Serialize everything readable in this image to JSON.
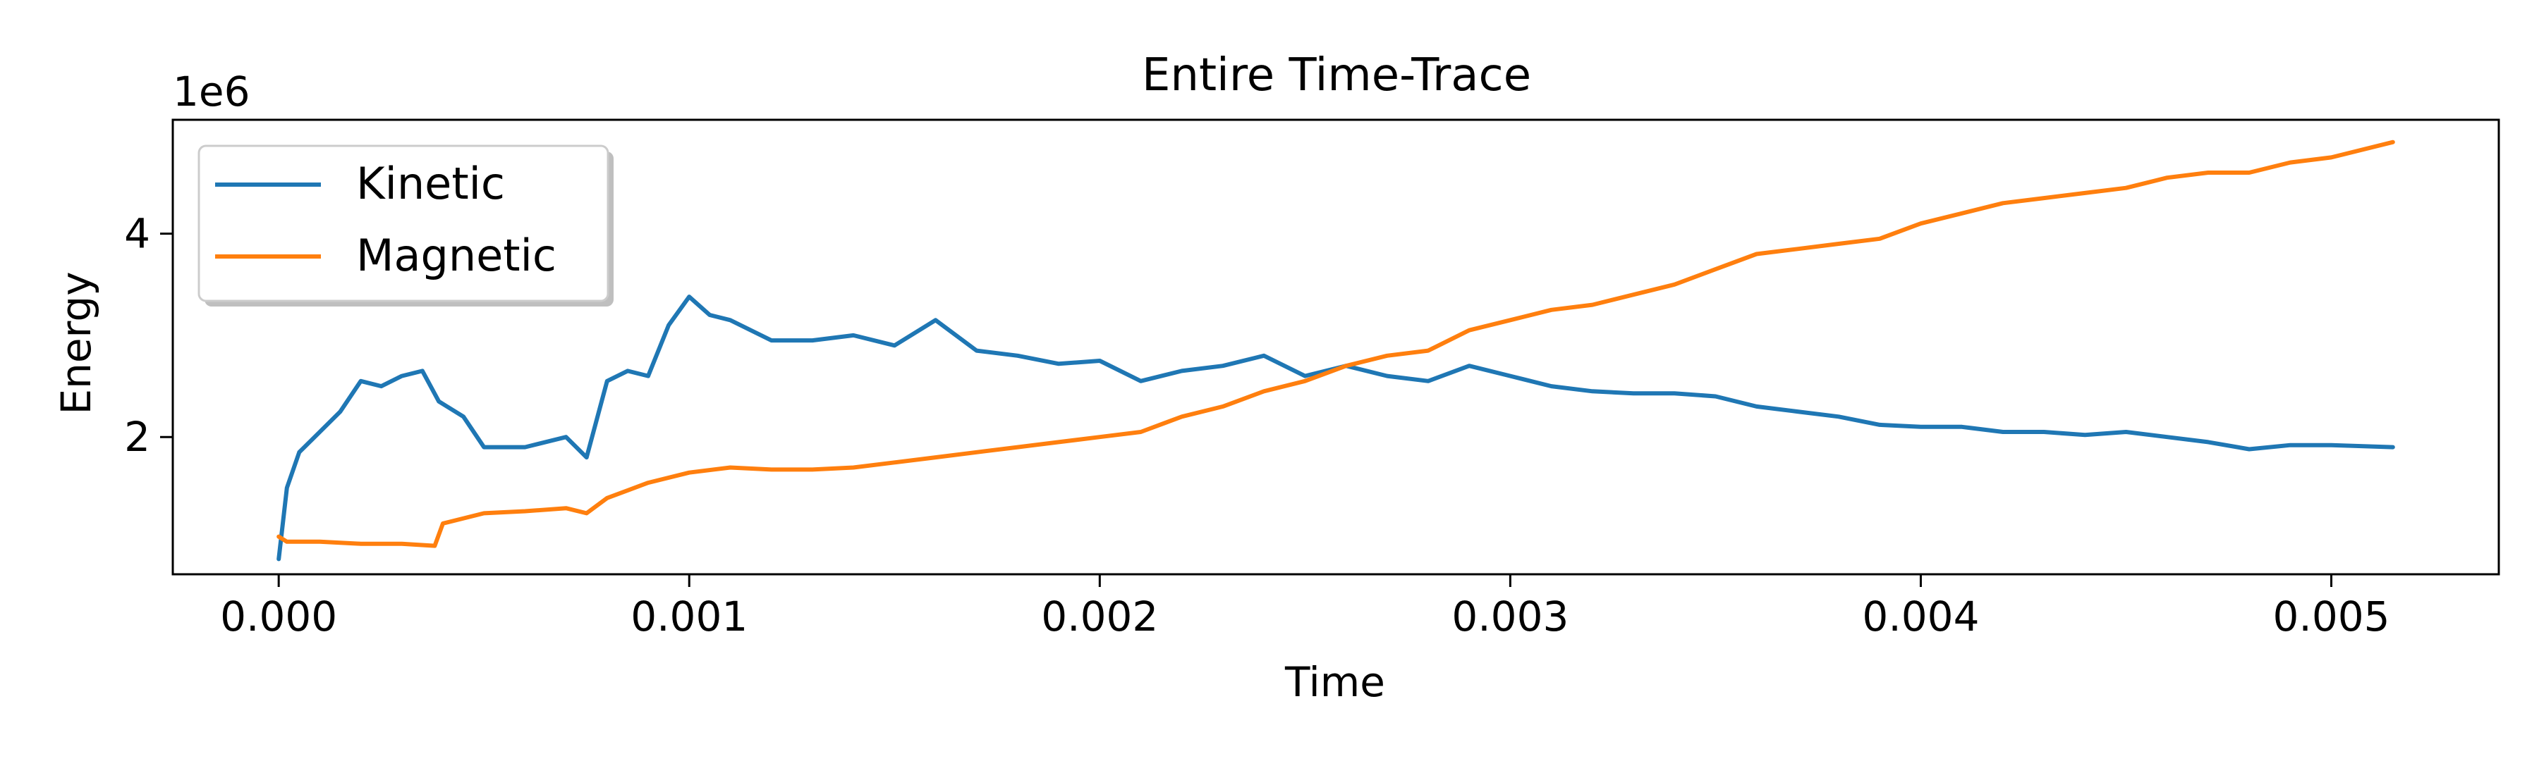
{
  "chart_data": {
    "type": "line",
    "title": "Entire Time-Trace",
    "xlabel": "Time",
    "ylabel": "Energy",
    "offset_text": "1e6",
    "xlim": [
      -0.000258,
      0.005408
    ],
    "ylim": [
      0.65,
      5.12
    ],
    "xticks": [
      0.0,
      0.001,
      0.002,
      0.003,
      0.004,
      0.005
    ],
    "xtick_labels": [
      "0.000",
      "0.001",
      "0.002",
      "0.003",
      "0.004",
      "0.005"
    ],
    "yticks": [
      2,
      4
    ],
    "ytick_labels": [
      "2",
      "4"
    ],
    "grid": false,
    "legend": "upper left",
    "series": [
      {
        "name": "Kinetic",
        "color": "#1f77b4",
        "x": [
          0.0,
          2e-05,
          5e-05,
          0.0001,
          0.00015,
          0.0002,
          0.00025,
          0.0003,
          0.00035,
          0.00039,
          0.00045,
          0.0005,
          0.0006,
          0.0007,
          0.00075,
          0.0008,
          0.00085,
          0.0009,
          0.00095,
          0.001,
          0.00105,
          0.0011,
          0.0012,
          0.0013,
          0.0014,
          0.0015,
          0.0016,
          0.0017,
          0.0018,
          0.0019,
          0.002,
          0.0021,
          0.0022,
          0.0023,
          0.0024,
          0.0025,
          0.0026,
          0.0027,
          0.0028,
          0.0029,
          0.003,
          0.0031,
          0.0032,
          0.0033,
          0.0034,
          0.0035,
          0.0036,
          0.0037,
          0.0038,
          0.0039,
          0.004,
          0.0041,
          0.0042,
          0.0043,
          0.0044,
          0.0045,
          0.0046,
          0.0047,
          0.0048,
          0.0049,
          0.005,
          0.00515
        ],
        "y": [
          0.8,
          1.5,
          1.85,
          2.05,
          2.25,
          2.55,
          2.5,
          2.6,
          2.65,
          2.35,
          2.2,
          1.9,
          1.9,
          2.0,
          1.8,
          2.55,
          2.65,
          2.6,
          3.1,
          3.38,
          3.2,
          3.15,
          2.95,
          2.95,
          3.0,
          2.9,
          3.15,
          2.85,
          2.8,
          2.72,
          2.75,
          2.55,
          2.65,
          2.7,
          2.8,
          2.6,
          2.7,
          2.6,
          2.55,
          2.7,
          2.6,
          2.5,
          2.45,
          2.43,
          2.43,
          2.4,
          2.3,
          2.25,
          2.2,
          2.12,
          2.1,
          2.1,
          2.05,
          2.05,
          2.02,
          2.05,
          2.0,
          1.95,
          1.88,
          1.92,
          1.92,
          1.9
        ]
      },
      {
        "name": "Magnetic",
        "color": "#ff7f0e",
        "x": [
          0.0,
          2e-05,
          0.0001,
          0.0002,
          0.0003,
          0.00038,
          0.0004,
          0.0005,
          0.0006,
          0.0007,
          0.00075,
          0.0008,
          0.0009,
          0.001,
          0.0011,
          0.0012,
          0.0013,
          0.0014,
          0.0015,
          0.0016,
          0.0017,
          0.0018,
          0.0019,
          0.002,
          0.0021,
          0.0022,
          0.0023,
          0.0024,
          0.0025,
          0.0026,
          0.0027,
          0.0028,
          0.0029,
          0.003,
          0.0031,
          0.0032,
          0.0033,
          0.0034,
          0.0035,
          0.0036,
          0.0037,
          0.0038,
          0.0039,
          0.004,
          0.0041,
          0.0042,
          0.0043,
          0.0044,
          0.0045,
          0.0046,
          0.0047,
          0.0048,
          0.0049,
          0.005,
          0.00515
        ],
        "y": [
          1.02,
          0.97,
          0.97,
          0.95,
          0.95,
          0.93,
          1.15,
          1.25,
          1.27,
          1.3,
          1.25,
          1.4,
          1.55,
          1.65,
          1.7,
          1.68,
          1.68,
          1.7,
          1.75,
          1.8,
          1.85,
          1.9,
          1.95,
          2.0,
          2.05,
          2.2,
          2.3,
          2.45,
          2.55,
          2.7,
          2.8,
          2.85,
          3.05,
          3.15,
          3.25,
          3.3,
          3.4,
          3.5,
          3.65,
          3.8,
          3.85,
          3.9,
          3.95,
          4.1,
          4.2,
          4.3,
          4.35,
          4.4,
          4.45,
          4.55,
          4.6,
          4.6,
          4.7,
          4.75,
          4.9
        ]
      }
    ]
  }
}
